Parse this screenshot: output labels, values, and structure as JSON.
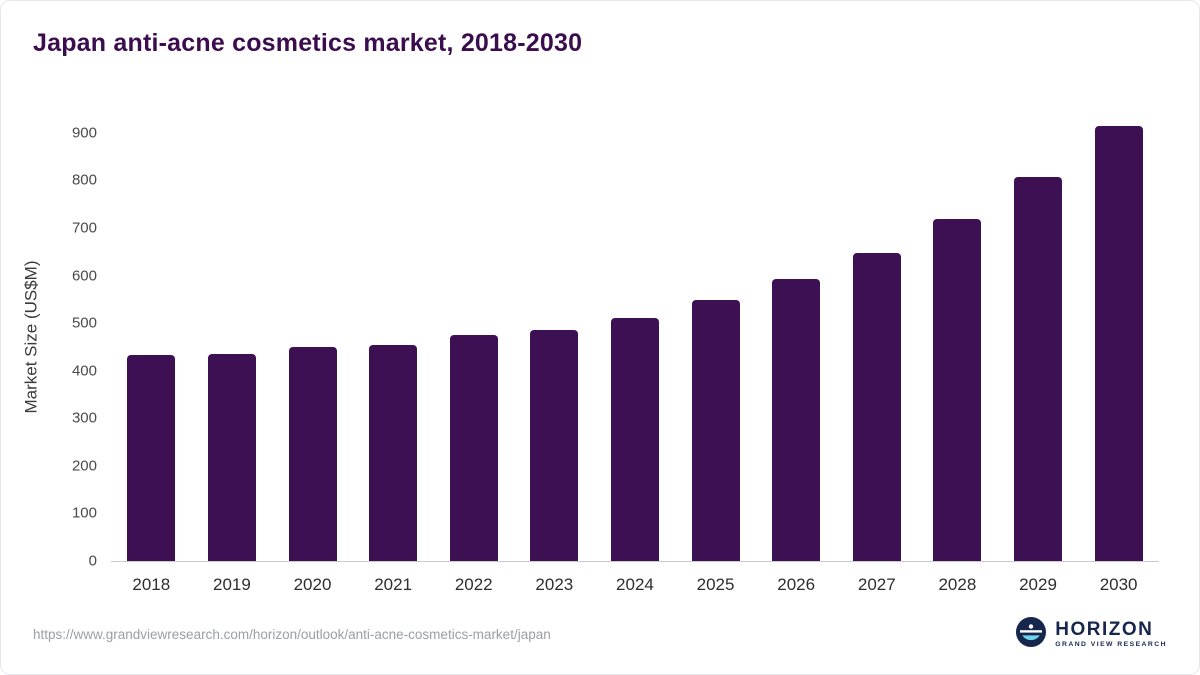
{
  "title": "Japan anti-acne cosmetics market, 2018-2030",
  "chart_data": {
    "type": "bar",
    "title": "Japan anti-acne cosmetics market, 2018-2030",
    "categories": [
      "2018",
      "2019",
      "2020",
      "2021",
      "2022",
      "2023",
      "2024",
      "2025",
      "2026",
      "2027",
      "2028",
      "2029",
      "2030"
    ],
    "values": [
      432,
      435,
      450,
      455,
      475,
      485,
      510,
      548,
      593,
      648,
      718,
      807,
      915
    ],
    "xlabel": "",
    "ylabel": "Market Size (US$M)",
    "ylim": [
      0,
      950
    ],
    "yticks": [
      0,
      100,
      200,
      300,
      400,
      500,
      600,
      700,
      800,
      900
    ],
    "grid": false,
    "legend": "none",
    "bar_color": "#3d1053"
  },
  "footer": {
    "source_url": "https://www.grandviewresearch.com/horizon/outlook/anti-acne-cosmetics-market/japan",
    "brand": {
      "name": "HORIZON",
      "tagline": "GRAND VIEW RESEARCH",
      "icon": "horizon-globe-icon",
      "icon_color": "#17264c",
      "icon_accent": "#6fd4e8"
    }
  }
}
